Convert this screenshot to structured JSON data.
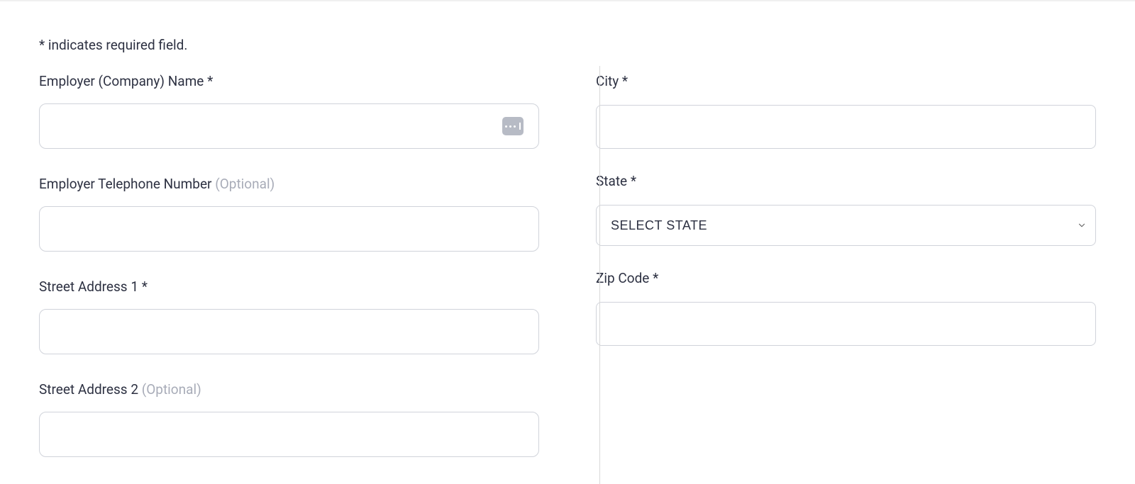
{
  "form": {
    "required_note": "* indicates required field.",
    "left": {
      "employer_name": {
        "label": "Employer (Company) Name *",
        "value": ""
      },
      "employer_phone": {
        "label": "Employer Telephone Number ",
        "optional": "(Optional)",
        "value": ""
      },
      "street1": {
        "label": "Street Address 1 *",
        "value": ""
      },
      "street2": {
        "label": "Street Address 2 ",
        "optional": "(Optional)",
        "value": ""
      }
    },
    "right": {
      "city": {
        "label": "City *",
        "value": ""
      },
      "state": {
        "label": "State *",
        "selected": "SELECT STATE"
      },
      "zip": {
        "label": "Zip Code *",
        "value": ""
      }
    }
  },
  "styling": {
    "input_border_color": "#d0d3da",
    "input_border_radius": 10,
    "label_color": "#2d3142",
    "optional_color": "#a8acb8",
    "background": "#ffffff",
    "autofill_icon_bg": "#b7bbc5"
  }
}
